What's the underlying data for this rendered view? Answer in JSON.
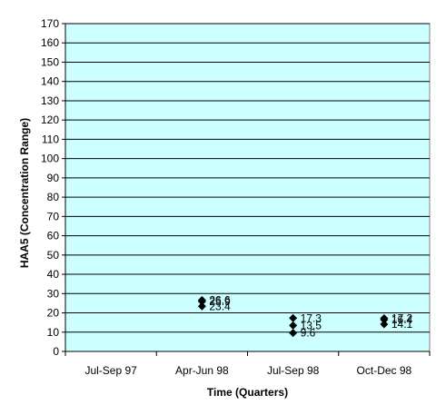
{
  "chart_data": {
    "type": "scatter",
    "title": "",
    "xlabel": "Time (Quarters)",
    "ylabel": "HAA5 (Concentration Range)",
    "categories": [
      "Jul-Sep 97",
      "Apr-Jun 98",
      "Jul-Sep 98",
      "Oct-Dec 98"
    ],
    "ylim": [
      0,
      170
    ],
    "yticks": [
      0,
      10,
      20,
      30,
      40,
      50,
      60,
      70,
      80,
      90,
      100,
      110,
      120,
      130,
      140,
      150,
      160,
      170
    ],
    "grid": true,
    "legend": "none",
    "marker": "diamond",
    "colors": {
      "plot_background": "#ccffff",
      "marker": "#000000",
      "gridline": "#000000"
    },
    "points": [
      {
        "category": "Apr-Jun 98",
        "value": 26.6,
        "label": "26.6"
      },
      {
        "category": "Apr-Jun 98",
        "value": 25.9,
        "label": "25.9"
      },
      {
        "category": "Apr-Jun 98",
        "value": 23.4,
        "label": "23.4"
      },
      {
        "category": "Jul-Sep 98",
        "value": 17.3,
        "label": "17.3"
      },
      {
        "category": "Jul-Sep 98",
        "value": 13.5,
        "label": "13.5"
      },
      {
        "category": "Jul-Sep 98",
        "value": 9.6,
        "label": "9.6"
      },
      {
        "category": "Oct-Dec 98",
        "value": 17.2,
        "label": "17.2"
      },
      {
        "category": "Oct-Dec 98",
        "value": 16.4,
        "label": "16.4"
      },
      {
        "category": "Oct-Dec 98",
        "value": 14.1,
        "label": "14.1"
      }
    ]
  }
}
